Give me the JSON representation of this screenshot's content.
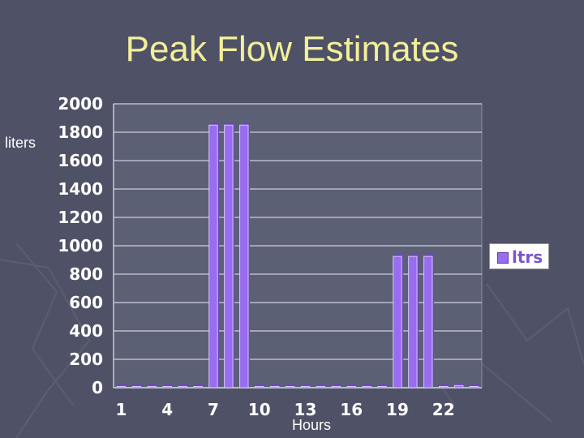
{
  "slide": {
    "title": "Peak Flow Estimates",
    "ylabel": "liters",
    "xlabel": "Hours"
  },
  "legend": {
    "label": "ltrs"
  },
  "colors": {
    "background": "#4f5266",
    "plot_area": "#5c6075",
    "bar": "#9a6cf0",
    "title": "#f3ef9a"
  },
  "chart_data": {
    "type": "bar",
    "categories": [
      "1",
      "2",
      "3",
      "4",
      "5",
      "6",
      "7",
      "8",
      "9",
      "10",
      "11",
      "12",
      "13",
      "14",
      "15",
      "16",
      "17",
      "18",
      "19",
      "20",
      "21",
      "22",
      "23",
      "24"
    ],
    "x_tick_labels": [
      "1",
      "4",
      "7",
      "10",
      "13",
      "16",
      "19",
      "22"
    ],
    "series": [
      {
        "name": "ltrs",
        "values": [
          0,
          0,
          0,
          0,
          0,
          0,
          1850,
          1850,
          1850,
          0,
          0,
          0,
          0,
          0,
          0,
          0,
          0,
          0,
          925,
          925,
          925,
          0,
          15,
          0
        ]
      }
    ],
    "ylim": [
      0,
      2000
    ],
    "yticks": [
      0,
      200,
      400,
      600,
      800,
      1000,
      1200,
      1400,
      1600,
      1800,
      2000
    ],
    "grid": true,
    "legend_position": "right"
  }
}
